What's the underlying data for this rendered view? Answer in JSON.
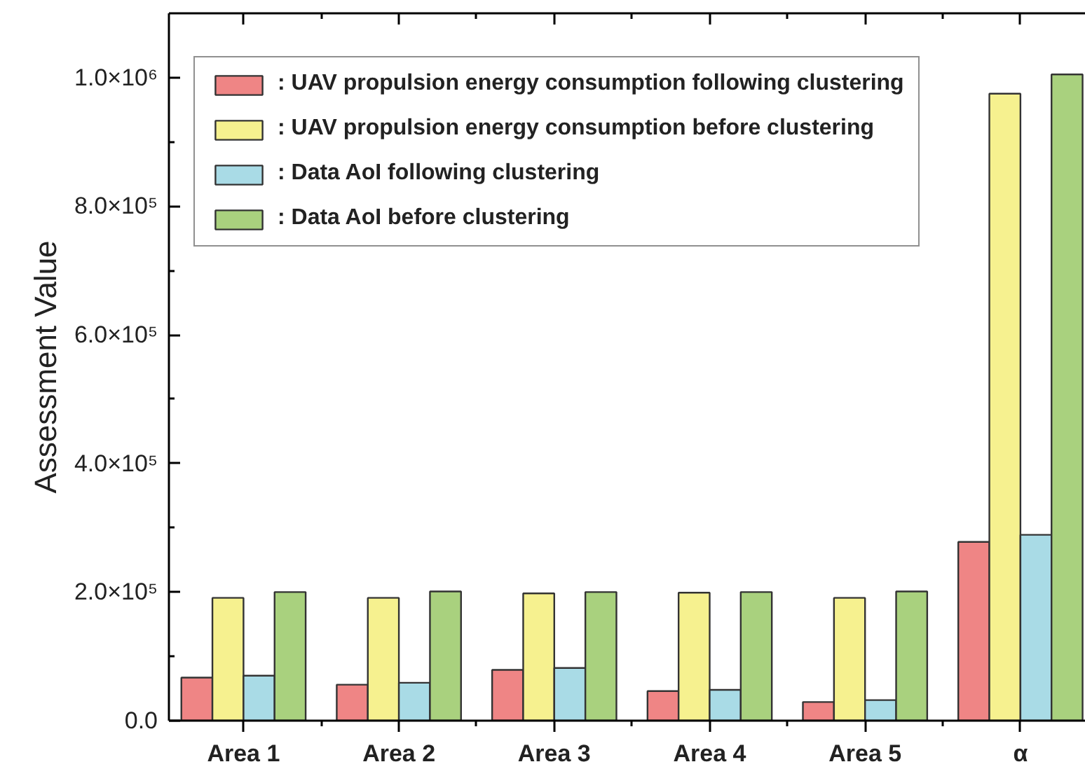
{
  "chart_data": {
    "type": "bar",
    "ylabel": "Assessment Value",
    "legend": "top left",
    "categories": [
      "Area 1",
      "Area 2",
      "Area 3",
      "Area 4",
      "Area 5",
      "α"
    ],
    "series": [
      {
        "name": ": UAV propulsion energy consumption following clustering",
        "color": "#ef8585",
        "values": [
          67000,
          56000,
          79000,
          46000,
          29000,
          278000
        ]
      },
      {
        "name": ": UAV propulsion energy consumption before clustering",
        "color": "#f6f18f",
        "values": [
          191000,
          191000,
          198000,
          199000,
          191000,
          975000
        ]
      },
      {
        "name": ": Data AoI following clustering",
        "color": "#a9dbe6",
        "values": [
          70000,
          59000,
          82000,
          48000,
          32000,
          289000
        ]
      },
      {
        "name": ": Data AoI before clustering",
        "color": "#a9d17e",
        "values": [
          200000,
          201000,
          200000,
          200000,
          201000,
          1005000
        ]
      }
    ],
    "ylim": [
      0,
      1100000
    ],
    "yticks": [
      {
        "value": 0,
        "label": "0.0"
      },
      {
        "value": 100000,
        "label": null
      },
      {
        "value": 200000,
        "label": "2.0×10⁵"
      },
      {
        "value": 300000,
        "label": null
      },
      {
        "value": 400000,
        "label": "4.0×10⁵"
      },
      {
        "value": 500000,
        "label": null
      },
      {
        "value": 600000,
        "label": "6.0×10⁵"
      },
      {
        "value": 700000,
        "label": null
      },
      {
        "value": 800000,
        "label": "8.0×10⁵"
      },
      {
        "value": 900000,
        "label": null
      },
      {
        "value": 1000000,
        "label": "1.0×10⁶"
      }
    ]
  }
}
